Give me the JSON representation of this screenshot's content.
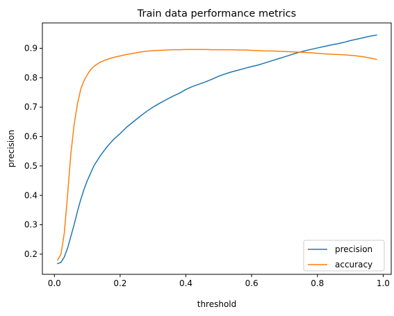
{
  "chart_data": {
    "type": "line",
    "title": "Train data performance metrics",
    "xlabel": "threshold",
    "ylabel": "precision",
    "xlim": [
      -0.0365,
      1.0245
    ],
    "ylim": [
      0.1314,
      0.9862
    ],
    "xticks": [
      0.0,
      0.2,
      0.4,
      0.6,
      0.8,
      1.0
    ],
    "xtick_labels": [
      "0.0",
      "0.2",
      "0.4",
      "0.6",
      "0.8",
      "1.0"
    ],
    "yticks": [
      0.2,
      0.3,
      0.4,
      0.5,
      0.6,
      0.7,
      0.8,
      0.9
    ],
    "ytick_labels": [
      "0.2",
      "0.3",
      "0.4",
      "0.5",
      "0.6",
      "0.7",
      "0.8",
      "0.9"
    ],
    "grid": false,
    "legend_position": "lower-right",
    "series": [
      {
        "name": "precision",
        "color": "#1f77b4",
        "x": [
          0.01,
          0.02,
          0.03,
          0.04,
          0.05,
          0.06,
          0.07,
          0.08,
          0.09,
          0.1,
          0.12,
          0.14,
          0.16,
          0.18,
          0.2,
          0.22,
          0.24,
          0.26,
          0.28,
          0.3,
          0.32,
          0.34,
          0.36,
          0.38,
          0.4,
          0.42,
          0.44,
          0.46,
          0.48,
          0.5,
          0.52,
          0.54,
          0.56,
          0.58,
          0.6,
          0.62,
          0.64,
          0.66,
          0.68,
          0.7,
          0.72,
          0.74,
          0.76,
          0.78,
          0.8,
          0.82,
          0.84,
          0.86,
          0.88,
          0.9,
          0.92,
          0.94,
          0.96,
          0.98
        ],
        "values": [
          0.168,
          0.172,
          0.19,
          0.22,
          0.26,
          0.3,
          0.345,
          0.385,
          0.42,
          0.45,
          0.5,
          0.535,
          0.565,
          0.59,
          0.61,
          0.632,
          0.65,
          0.668,
          0.685,
          0.7,
          0.713,
          0.725,
          0.737,
          0.747,
          0.76,
          0.77,
          0.778,
          0.786,
          0.795,
          0.805,
          0.813,
          0.82,
          0.826,
          0.832,
          0.838,
          0.843,
          0.85,
          0.857,
          0.864,
          0.871,
          0.878,
          0.885,
          0.891,
          0.896,
          0.901,
          0.906,
          0.911,
          0.915,
          0.92,
          0.926,
          0.931,
          0.936,
          0.941,
          0.945
        ]
      },
      {
        "name": "accuracy",
        "color": "#ff7f0e",
        "x": [
          0.01,
          0.02,
          0.03,
          0.04,
          0.05,
          0.06,
          0.07,
          0.08,
          0.09,
          0.1,
          0.11,
          0.12,
          0.13,
          0.14,
          0.16,
          0.18,
          0.2,
          0.22,
          0.24,
          0.26,
          0.28,
          0.3,
          0.32,
          0.34,
          0.36,
          0.38,
          0.4,
          0.42,
          0.44,
          0.46,
          0.48,
          0.5,
          0.52,
          0.54,
          0.56,
          0.58,
          0.6,
          0.62,
          0.64,
          0.66,
          0.68,
          0.7,
          0.72,
          0.74,
          0.76,
          0.78,
          0.8,
          0.82,
          0.84,
          0.86,
          0.88,
          0.9,
          0.92,
          0.94,
          0.96,
          0.98
        ],
        "values": [
          0.18,
          0.2,
          0.27,
          0.4,
          0.54,
          0.64,
          0.71,
          0.76,
          0.79,
          0.81,
          0.827,
          0.838,
          0.846,
          0.853,
          0.862,
          0.869,
          0.874,
          0.879,
          0.883,
          0.887,
          0.89,
          0.892,
          0.893,
          0.894,
          0.895,
          0.895,
          0.896,
          0.896,
          0.896,
          0.896,
          0.895,
          0.895,
          0.895,
          0.895,
          0.894,
          0.894,
          0.893,
          0.892,
          0.891,
          0.891,
          0.89,
          0.889,
          0.888,
          0.887,
          0.886,
          0.885,
          0.883,
          0.881,
          0.88,
          0.879,
          0.878,
          0.876,
          0.874,
          0.871,
          0.867,
          0.862
        ]
      }
    ]
  }
}
